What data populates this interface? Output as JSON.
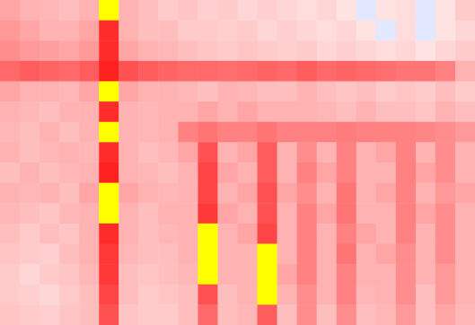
{
  "chart_data": {
    "type": "heatmap",
    "tick_labels": false,
    "zlim": [
      0,
      1
    ],
    "z": [
      [
        0.35,
        0.3,
        0.28,
        0.25,
        0.3,
        1.1,
        0.3,
        0.25,
        0.2,
        0.22,
        0.18,
        0.2,
        0.15,
        0.18,
        0.15,
        0.12,
        0.15,
        0.1,
        0.02,
        0.1,
        0.12,
        0.05,
        0.1,
        0.2
      ],
      [
        0.4,
        0.35,
        0.3,
        0.3,
        0.35,
        0.85,
        0.3,
        0.25,
        0.25,
        0.2,
        0.2,
        0.18,
        0.2,
        0.15,
        0.18,
        0.15,
        0.12,
        0.15,
        0.1,
        0.04,
        0.12,
        0.02,
        0.1,
        0.15
      ],
      [
        0.45,
        0.4,
        0.38,
        0.35,
        0.4,
        0.85,
        0.35,
        0.3,
        0.28,
        0.25,
        0.22,
        0.2,
        0.22,
        0.2,
        0.18,
        0.2,
        0.15,
        0.18,
        0.15,
        0.12,
        0.15,
        0.1,
        0.15,
        0.2
      ],
      [
        0.6,
        0.65,
        0.62,
        0.6,
        0.65,
        0.9,
        0.7,
        0.65,
        0.62,
        0.6,
        0.6,
        0.58,
        0.6,
        0.62,
        0.6,
        0.65,
        0.6,
        0.62,
        0.6,
        0.58,
        0.55,
        0.55,
        0.5,
        0.3
      ],
      [
        0.35,
        0.3,
        0.3,
        0.28,
        0.35,
        1.1,
        0.35,
        0.3,
        0.3,
        0.28,
        0.25,
        0.3,
        0.28,
        0.25,
        0.25,
        0.3,
        0.25,
        0.22,
        0.25,
        0.2,
        0.22,
        0.2,
        0.25,
        0.2
      ],
      [
        0.3,
        0.28,
        0.25,
        0.3,
        0.3,
        0.85,
        0.3,
        0.28,
        0.3,
        0.3,
        0.35,
        0.3,
        0.35,
        0.3,
        0.3,
        0.3,
        0.28,
        0.25,
        0.3,
        0.25,
        0.25,
        0.22,
        0.3,
        0.25
      ],
      [
        0.28,
        0.25,
        0.3,
        0.25,
        0.3,
        1.1,
        0.3,
        0.28,
        0.3,
        0.5,
        0.55,
        0.5,
        0.5,
        0.55,
        0.5,
        0.5,
        0.5,
        0.52,
        0.5,
        0.5,
        0.5,
        0.48,
        0.45,
        0.4
      ],
      [
        0.3,
        0.25,
        0.28,
        0.3,
        0.28,
        0.85,
        0.3,
        0.25,
        0.28,
        0.35,
        0.7,
        0.3,
        0.35,
        0.65,
        0.3,
        0.45,
        0.3,
        0.5,
        0.3,
        0.35,
        0.5,
        0.3,
        0.45,
        0.3
      ],
      [
        0.25,
        0.3,
        0.25,
        0.28,
        0.3,
        0.9,
        0.3,
        0.28,
        0.25,
        0.3,
        0.75,
        0.35,
        0.3,
        0.65,
        0.3,
        0.5,
        0.35,
        0.5,
        0.3,
        0.3,
        0.5,
        0.35,
        0.45,
        0.3
      ],
      [
        0.3,
        0.28,
        0.3,
        0.25,
        0.35,
        1.1,
        0.35,
        0.3,
        0.28,
        0.3,
        0.75,
        0.3,
        0.35,
        0.7,
        0.35,
        0.45,
        0.3,
        0.55,
        0.3,
        0.35,
        0.5,
        0.3,
        0.4,
        0.35
      ],
      [
        0.28,
        0.25,
        0.22,
        0.28,
        0.3,
        1.1,
        0.3,
        0.25,
        0.3,
        0.3,
        0.8,
        0.35,
        0.3,
        0.7,
        0.3,
        0.5,
        0.35,
        0.55,
        0.3,
        0.3,
        0.5,
        0.35,
        0.45,
        0.3
      ],
      [
        0.25,
        0.2,
        0.25,
        0.22,
        0.3,
        0.85,
        0.3,
        0.25,
        0.28,
        0.3,
        1.1,
        0.3,
        0.35,
        0.75,
        0.3,
        0.5,
        0.3,
        0.5,
        0.35,
        0.3,
        0.5,
        0.3,
        0.45,
        0.3
      ],
      [
        0.22,
        0.2,
        0.18,
        0.25,
        0.3,
        0.8,
        0.28,
        0.25,
        0.25,
        0.3,
        1.1,
        0.3,
        0.3,
        1.1,
        0.3,
        0.5,
        0.3,
        0.55,
        0.3,
        0.35,
        0.45,
        0.3,
        0.45,
        0.3
      ],
      [
        0.2,
        0.15,
        0.2,
        0.22,
        0.28,
        0.8,
        0.25,
        0.22,
        0.25,
        0.28,
        1.1,
        0.3,
        0.3,
        1.1,
        0.35,
        0.5,
        0.3,
        0.5,
        0.3,
        0.3,
        0.45,
        0.3,
        0.4,
        0.3
      ],
      [
        0.2,
        0.18,
        0.15,
        0.2,
        0.25,
        0.75,
        0.25,
        0.2,
        0.22,
        0.25,
        0.7,
        0.25,
        0.3,
        1.1,
        0.3,
        0.45,
        0.3,
        0.5,
        0.28,
        0.3,
        0.45,
        0.25,
        0.4,
        0.3
      ],
      [
        0.22,
        0.2,
        0.18,
        0.22,
        0.25,
        0.7,
        0.22,
        0.2,
        0.2,
        0.25,
        0.6,
        0.25,
        0.28,
        0.65,
        0.25,
        0.45,
        0.25,
        0.45,
        0.25,
        0.28,
        0.4,
        0.25,
        0.35,
        0.28
      ]
    ]
  }
}
